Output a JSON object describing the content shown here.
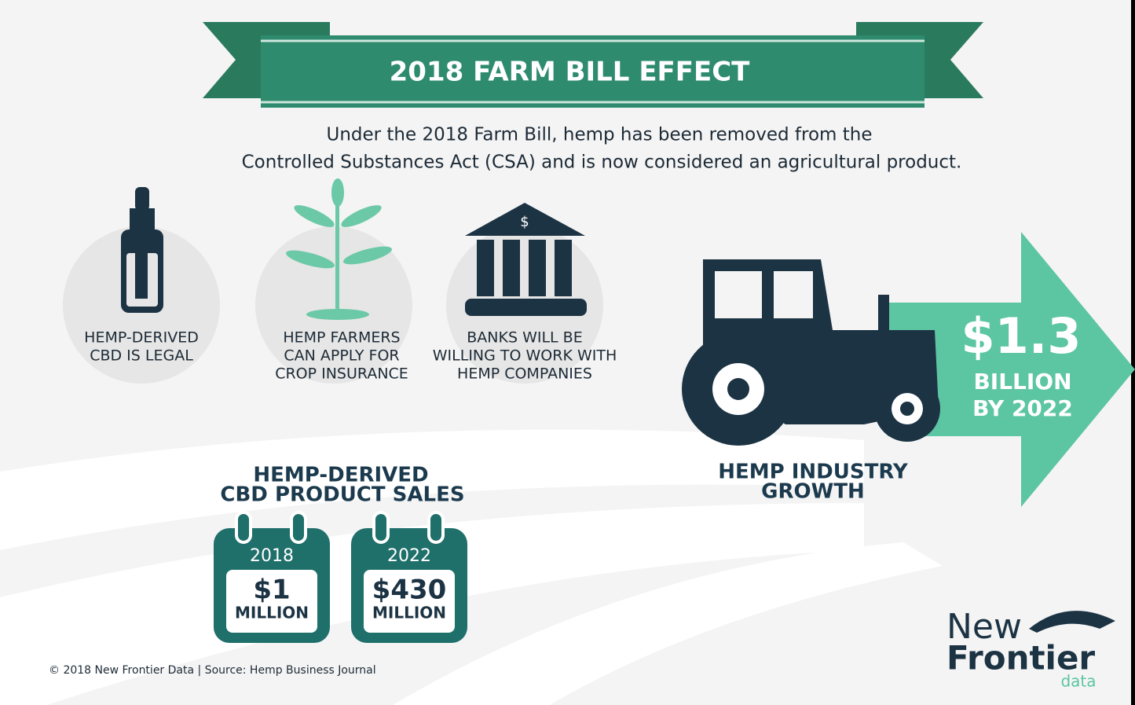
{
  "header": {
    "title": "2018 FARM BILL EFFECT",
    "intro": [
      "Under the 2018 Farm Bill, hemp has been removed from the",
      "Controlled Substances Act (CSA) and is now considered an agricultural product."
    ]
  },
  "effects": [
    {
      "lines": [
        "HEMP-DERIVED",
        "CBD IS LEGAL"
      ]
    },
    {
      "lines": [
        "HEMP FARMERS",
        "CAN APPLY FOR",
        "CROP INSURANCE"
      ]
    },
    {
      "lines": [
        "BANKS WILL BE",
        "WILLING TO WORK WITH",
        "HEMP COMPANIES"
      ]
    }
  ],
  "growth": {
    "value": "$1.3",
    "unit": "BILLION",
    "by": "BY 2022",
    "label": [
      "HEMP INDUSTRY",
      "GROWTH"
    ]
  },
  "sales": {
    "title": [
      "HEMP-DERIVED",
      "CBD PRODUCT SALES"
    ],
    "calendars": [
      {
        "year": "2018",
        "amount": "$1",
        "unit": "MILLION"
      },
      {
        "year": "2022",
        "amount": "$430",
        "unit": "MILLION"
      }
    ]
  },
  "footer": "© 2018 New Frontier Data | Source: Hemp Business Journal",
  "logo": [
    "New",
    "Frontier",
    "data"
  ]
}
